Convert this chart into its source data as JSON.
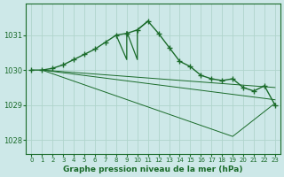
{
  "title": "Graphe pression niveau de la mer (hPa)",
  "background_color": "#cde8e8",
  "grid_color": "#b0d4cc",
  "line_color": "#1a6b2a",
  "xlim": [
    -0.5,
    23.5
  ],
  "ylim": [
    1027.6,
    1031.9
  ],
  "yticks": [
    1028,
    1029,
    1030,
    1031
  ],
  "xticks": [
    0,
    1,
    2,
    3,
    4,
    5,
    6,
    7,
    8,
    9,
    10,
    11,
    12,
    13,
    14,
    15,
    16,
    17,
    18,
    19,
    20,
    21,
    22,
    23
  ],
  "series": [
    {
      "x": [
        0,
        1,
        2,
        3,
        4,
        5,
        6,
        7,
        8,
        9,
        10,
        11,
        12,
        13,
        14,
        15,
        16,
        17,
        18,
        19,
        20,
        21,
        22,
        23
      ],
      "y": [
        1030.0,
        1030.0,
        1030.05,
        1030.15,
        1030.3,
        1030.45,
        1030.6,
        1030.8,
        1031.0,
        1031.05,
        1031.15,
        1031.4,
        1031.05,
        1030.65,
        1030.25,
        1030.1,
        1029.85,
        1029.75,
        1029.7,
        1029.75,
        1029.5,
        1029.4,
        1029.55,
        1029.0
      ],
      "marker": "+",
      "linewidth": 1.0,
      "markersize": 4,
      "linestyle": "-"
    },
    {
      "x": [
        1,
        23
      ],
      "y": [
        1030.0,
        1029.15
      ],
      "marker": null,
      "linewidth": 0.7,
      "markersize": 0,
      "linestyle": "-"
    },
    {
      "x": [
        1,
        19,
        23
      ],
      "y": [
        1030.0,
        1028.1,
        1029.05
      ],
      "marker": null,
      "linewidth": 0.7,
      "markersize": 0,
      "linestyle": "-"
    },
    {
      "x": [
        1,
        23
      ],
      "y": [
        1030.0,
        1029.5
      ],
      "marker": null,
      "linewidth": 0.7,
      "markersize": 0,
      "linestyle": "-"
    },
    {
      "x": [
        8,
        9,
        9,
        10,
        10,
        11
      ],
      "y": [
        1031.0,
        1030.3,
        1031.1,
        1030.3,
        1031.15,
        1031.4
      ],
      "marker": null,
      "linewidth": 0.9,
      "markersize": 0,
      "linestyle": "-"
    }
  ]
}
